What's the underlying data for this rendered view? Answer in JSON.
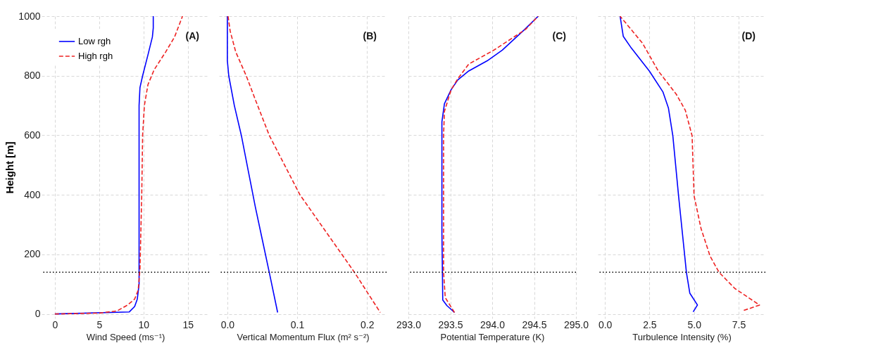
{
  "chart_data": [
    {
      "type": "line",
      "xlabel": "Wind Speed (ms⁻¹)",
      "ylabel": "Height [m]",
      "annotations": [
        "(A)"
      ],
      "legend": "top left",
      "grid": true,
      "xlim": [
        -1.5,
        17.4
      ],
      "xticks": [
        0,
        5,
        10,
        15
      ],
      "ylim": [
        -15,
        1000
      ],
      "yticks": [
        0,
        200,
        400,
        600,
        800,
        1000
      ],
      "ref_lines": [
        {
          "axis": "y",
          "value": 140,
          "color": "#000000",
          "line_style": "dotted"
        }
      ],
      "series": [
        {
          "name": "Low rgh",
          "color": "#0000ff",
          "line_style": "solid",
          "x": [
            0,
            8.4,
            9.0,
            9.3,
            9.5,
            9.5,
            9.5,
            9.5,
            9.5,
            9.6,
            9.9,
            10.5,
            11.0,
            11.1,
            11.1
          ],
          "values": [
            0,
            7,
            25,
            50,
            100,
            200,
            400,
            600,
            700,
            760,
            800,
            870,
            930,
            960,
            1000
          ]
        },
        {
          "name": "High rgh",
          "color": "#ee2222",
          "line_style": "dashed",
          "x": [
            0,
            5,
            7,
            8.2,
            9,
            9.4,
            9.6,
            9.8,
            9.9,
            10.1,
            10.5,
            11.2,
            12.5,
            13.5,
            14.4
          ],
          "values": [
            0,
            3,
            10,
            30,
            50,
            80,
            150,
            400,
            600,
            700,
            770,
            820,
            880,
            930,
            1000
          ]
        }
      ]
    },
    {
      "type": "line",
      "xlabel": "Vertical Momentum Flux (m² s⁻²)",
      "annotations": [
        "(B)"
      ],
      "grid": true,
      "tick_labels": "x",
      "xlim": [
        -0.012,
        0.228
      ],
      "xticks": [
        {
          "value": 0,
          "label": "0.0"
        },
        {
          "value": 0.1,
          "label": "0.1"
        },
        {
          "value": 0.2,
          "label": "0.2"
        }
      ],
      "ylim": [
        -15,
        1000
      ],
      "yticks": [
        0,
        200,
        400,
        600,
        800,
        1000
      ],
      "ref_lines": [
        {
          "axis": "y",
          "value": 140,
          "color": "#000000",
          "line_style": "dotted"
        }
      ],
      "series": [
        {
          "color": "#0000ff",
          "line_style": "solid",
          "x": [
            0,
            0,
            0.002,
            0.01,
            0.02,
            0.03,
            0.04,
            0.05,
            0.06,
            0.072
          ],
          "values": [
            1000,
            850,
            800,
            700,
            600,
            480,
            360,
            250,
            140,
            5
          ]
        },
        {
          "color": "#ee2222",
          "line_style": "dashed",
          "x": [
            0.001,
            0.004,
            0.012,
            0.027,
            0.04,
            0.06,
            0.104,
            0.14,
            0.182,
            0.219
          ],
          "values": [
            1000,
            950,
            880,
            800,
            720,
            600,
            400,
            280,
            140,
            5
          ]
        }
      ]
    },
    {
      "type": "line",
      "xlabel": "Potential Temperature (K)",
      "annotations": [
        "(C)"
      ],
      "grid": true,
      "tick_labels": "x",
      "xlim": [
        293,
        295
      ],
      "xticks": [
        {
          "value": 293,
          "label": "293.0"
        },
        {
          "value": 293.5,
          "label": "293.5"
        },
        {
          "value": 294,
          "label": "294.0"
        },
        {
          "value": 294.5,
          "label": "294.5"
        },
        {
          "value": 295,
          "label": "295.0"
        }
      ],
      "ylim": [
        -15,
        1000
      ],
      "yticks": [
        0,
        200,
        400,
        600,
        800,
        1000
      ],
      "ref_lines": [
        {
          "axis": "y",
          "value": 140,
          "color": "#000000",
          "line_style": "dotted"
        }
      ],
      "series": [
        {
          "color": "#0000ff",
          "line_style": "solid",
          "x": [
            293.55,
            293.46,
            293.41,
            293.4,
            293.4,
            293.43,
            293.51,
            293.59,
            293.72,
            293.94,
            294.12,
            294.39,
            294.55
          ],
          "values": [
            5,
            28,
            47,
            273,
            645,
            706,
            753,
            786,
            816,
            850,
            886,
            956,
            1000
          ]
        },
        {
          "color": "#ee2222",
          "line_style": "dashed",
          "x": [
            293.55,
            293.44,
            293.42,
            293.42,
            293.43,
            293.51,
            293.59,
            293.72,
            294.02,
            294.4,
            294.55
          ],
          "values": [
            5,
            55,
            140,
            600,
            680,
            753,
            790,
            839,
            886,
            956,
            1000
          ]
        }
      ]
    },
    {
      "type": "line",
      "xlabel": "Turbulence Intensity  (%)",
      "annotations": [
        "(D)"
      ],
      "grid": true,
      "tick_labels": "x",
      "xlim": [
        -0.4,
        9
      ],
      "xticks": [
        {
          "value": 0,
          "label": "0.0"
        },
        {
          "value": 2.5,
          "label": "2.5"
        },
        {
          "value": 5,
          "label": "5.0"
        },
        {
          "value": 7.5,
          "label": "7.5"
        }
      ],
      "ylim": [
        -15,
        1000
      ],
      "yticks": [
        0,
        200,
        400,
        600,
        800,
        1000
      ],
      "ref_lines": [
        {
          "axis": "y",
          "value": 140,
          "color": "#000000",
          "line_style": "dotted"
        }
      ],
      "series": [
        {
          "color": "#0000ff",
          "line_style": "solid",
          "x": [
            4.95,
            5.19,
            4.76,
            4.57,
            4.13,
            3.81,
            3.56,
            3.25,
            2.49,
            1.48,
            1.03,
            0.85
          ],
          "values": [
            7,
            30,
            70,
            140,
            397,
            598,
            692,
            746,
            816,
            893,
            932,
            1000
          ]
        },
        {
          "color": "#ee2222",
          "line_style": "dashed",
          "x": [
            7.79,
            8.67,
            7.28,
            6.4,
            5.9,
            5.39,
            5.0,
            4.89,
            4.51,
            4.0,
            2.99,
            2.11,
            0.85
          ],
          "values": [
            12,
            30,
            86,
            140,
            194,
            287,
            397,
            598,
            684,
            738,
            816,
            909,
            1000
          ]
        }
      ]
    }
  ]
}
